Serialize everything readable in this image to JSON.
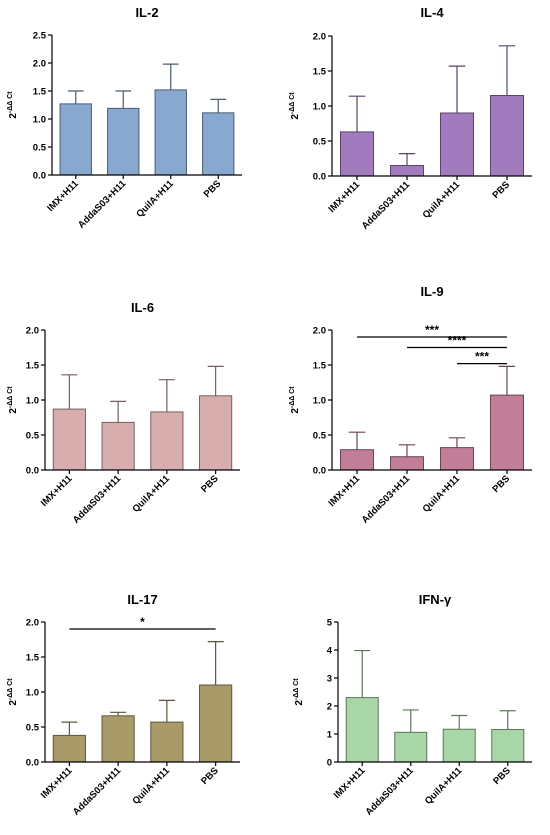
{
  "chart_data": [
    {
      "type": "bar",
      "title": "IL-2",
      "ylabel": "2-ΔΔ Ct",
      "categories": [
        "IMX+H11",
        "AddaS03+H11",
        "QuilA+H11",
        "PBS"
      ],
      "values": [
        1.27,
        1.19,
        1.52,
        1.11
      ],
      "errors": [
        0.23,
        0.31,
        0.46,
        0.24
      ],
      "ylim": [
        0,
        2.5
      ],
      "yticks": [
        "0.0",
        "0.5",
        "1.0",
        "1.5",
        "2.0",
        "2.5"
      ],
      "bar_color": "#88a8cf",
      "significance": []
    },
    {
      "type": "bar",
      "title": "IL-4",
      "ylabel": "2-ΔΔ Ct",
      "categories": [
        "IMX+H11",
        "AddaS03+H11",
        "QuilA+H11",
        "PBS"
      ],
      "values": [
        0.63,
        0.15,
        0.9,
        1.15
      ],
      "errors": [
        0.51,
        0.17,
        0.67,
        0.71
      ],
      "ylim": [
        0,
        2.0
      ],
      "yticks": [
        "0.0",
        "0.5",
        "1.0",
        "1.5",
        "2.0"
      ],
      "bar_color": "#a17bbe",
      "significance": []
    },
    {
      "type": "bar",
      "title": "IL-6",
      "ylabel": "2-ΔΔ Ct",
      "categories": [
        "IMX+H11",
        "AddaS03+H11",
        "QuilA+H11",
        "PBS"
      ],
      "values": [
        0.87,
        0.68,
        0.83,
        1.06
      ],
      "errors": [
        0.49,
        0.3,
        0.46,
        0.42
      ],
      "ylim": [
        0,
        2.0
      ],
      "yticks": [
        "0.0",
        "0.5",
        "1.0",
        "1.5",
        "2.0"
      ],
      "bar_color": "#d8adae",
      "significance": []
    },
    {
      "type": "bar",
      "title": "IL-9",
      "ylabel": "2-ΔΔ Ct",
      "categories": [
        "IMX+H11",
        "AddaS03+H11",
        "QuilA+H11",
        "PBS"
      ],
      "values": [
        0.29,
        0.19,
        0.32,
        1.07
      ],
      "errors": [
        0.25,
        0.17,
        0.14,
        0.41
      ],
      "ylim": [
        0,
        2.0
      ],
      "yticks": [
        "0.0",
        "0.5",
        "1.0",
        "1.5",
        "2.0"
      ],
      "bar_color": "#c27e99",
      "significance": [
        {
          "from": 0,
          "to": 3,
          "y": 1.9,
          "label": "***"
        },
        {
          "from": 1,
          "to": 3,
          "y": 1.75,
          "label": "****"
        },
        {
          "from": 2,
          "to": 3,
          "y": 1.52,
          "label": "***"
        }
      ]
    },
    {
      "type": "bar",
      "title": "IL-17",
      "ylabel": "2-ΔΔ Ct",
      "categories": [
        "IMX+H11",
        "AddaS03+H11",
        "QuilA+H11",
        "PBS"
      ],
      "values": [
        0.38,
        0.66,
        0.57,
        1.1
      ],
      "errors": [
        0.19,
        0.05,
        0.31,
        0.62
      ],
      "ylim": [
        0,
        2.0
      ],
      "yticks": [
        "0.0",
        "0.5",
        "1.0",
        "1.5",
        "2.0"
      ],
      "bar_color": "#a99b69",
      "significance": [
        {
          "from": 0,
          "to": 3,
          "y": 1.9,
          "label": "*"
        }
      ]
    },
    {
      "type": "bar",
      "title": "IFN-γ",
      "ylabel": "2-ΔΔ Ct",
      "categories": [
        "IMX+H11",
        "AddaS03+H11",
        "QuilA+H11",
        "PBS"
      ],
      "values": [
        2.3,
        1.06,
        1.17,
        1.16
      ],
      "errors": [
        1.68,
        0.8,
        0.49,
        0.67
      ],
      "ylim": [
        0,
        5
      ],
      "yticks": [
        "0",
        "1",
        "2",
        "3",
        "4",
        "5"
      ],
      "bar_color": "#a9d6a6",
      "significance": []
    }
  ]
}
